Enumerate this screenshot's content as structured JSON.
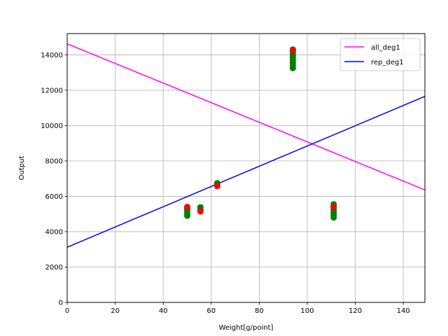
{
  "chart_data": {
    "type": "scatter",
    "title": "",
    "xlabel": "Weight[g/point]",
    "ylabel": "Output",
    "xlim": [
      0,
      149
    ],
    "ylim": [
      0,
      15200
    ],
    "xticks": [
      0,
      20,
      40,
      60,
      80,
      100,
      120,
      140
    ],
    "yticks": [
      0,
      2000,
      4000,
      6000,
      8000,
      10000,
      12000,
      14000
    ],
    "grid": true,
    "legend_position": "top-right",
    "scatter_series": [
      {
        "color": "#008000",
        "points": [
          [
            50,
            4900
          ],
          [
            50,
            5050
          ],
          [
            50,
            5200
          ],
          [
            50,
            5300
          ],
          [
            55.5,
            5150
          ],
          [
            55.5,
            5250
          ],
          [
            55.5,
            5380
          ],
          [
            62.5,
            6600
          ],
          [
            62.5,
            6680
          ],
          [
            62.5,
            6740
          ],
          [
            94,
            13250
          ],
          [
            94,
            13400
          ],
          [
            94,
            13550
          ],
          [
            94,
            13700
          ],
          [
            94,
            13850
          ],
          [
            94,
            14000
          ],
          [
            94,
            14150
          ],
          [
            94,
            14300
          ],
          [
            111,
            4800
          ],
          [
            111,
            4950
          ],
          [
            111,
            5100
          ],
          [
            111,
            5250
          ],
          [
            111,
            5400
          ],
          [
            111,
            5550
          ]
        ]
      },
      {
        "color": "#ff0000",
        "points": [
          [
            50,
            5400
          ],
          [
            55.5,
            5150
          ],
          [
            62.5,
            6580
          ],
          [
            94,
            14250
          ],
          [
            111,
            5400
          ]
        ]
      }
    ],
    "lines": [
      {
        "name": "all_deg1",
        "color": "#ff00ff",
        "x": [
          0,
          149
        ],
        "y": [
          14620,
          6360
        ]
      },
      {
        "name": "rep_deg1",
        "color": "#0000ff",
        "x": [
          0,
          149
        ],
        "y": [
          3120,
          11650
        ]
      }
    ]
  }
}
